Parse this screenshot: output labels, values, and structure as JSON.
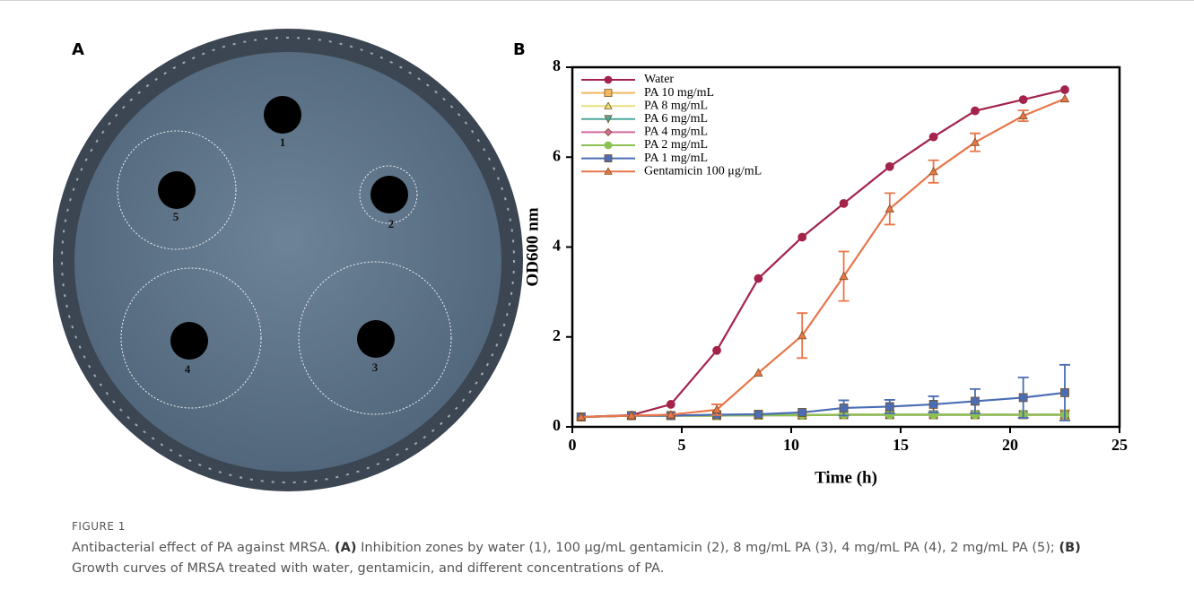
{
  "panel_a": {
    "label": "A",
    "well_labels": [
      "1",
      "2",
      "3",
      "4",
      "5"
    ]
  },
  "chart_data": {
    "type": "line",
    "panel_label": "B",
    "x_label": "Time (h)",
    "y_label": "OD600 nm",
    "xlim": [
      0,
      25
    ],
    "ylim": [
      0,
      8
    ],
    "xticks": [
      0,
      5,
      10,
      15,
      20,
      25
    ],
    "yticks": [
      0,
      2,
      4,
      6,
      8
    ],
    "grid": false,
    "legend": "upper left",
    "x": [
      0.4,
      2.7,
      4.5,
      6.6,
      8.5,
      10.5,
      12.4,
      14.5,
      16.5,
      18.4,
      20.6,
      22.5
    ],
    "series": [
      {
        "name": "Water",
        "color": "#a3234b",
        "marker": "circle",
        "values": [
          0.22,
          0.26,
          0.5,
          1.7,
          3.3,
          4.22,
          4.97,
          5.79,
          6.45,
          7.03,
          7.28,
          7.5
        ],
        "errors": [
          null,
          null,
          null,
          null,
          null,
          null,
          null,
          null,
          null,
          null,
          null,
          null
        ]
      },
      {
        "name": "PA 10 mg/mL",
        "color": "#f0b860",
        "marker": "square",
        "values": [
          0.22,
          0.25,
          0.25,
          0.25,
          0.26,
          0.26,
          0.27,
          0.27,
          0.27,
          0.27,
          0.27,
          0.27
        ],
        "errors": [
          null,
          null,
          null,
          null,
          null,
          null,
          null,
          null,
          null,
          null,
          null,
          0.1
        ]
      },
      {
        "name": "PA 8 mg/mL",
        "color": "#e6e07a",
        "marker": "triangle",
        "values": [
          0.22,
          0.25,
          0.25,
          0.25,
          0.26,
          0.26,
          0.27,
          0.27,
          0.27,
          0.27,
          0.27,
          0.27
        ],
        "errors": [
          null,
          null,
          null,
          null,
          null,
          null,
          null,
          null,
          null,
          null,
          null,
          null
        ]
      },
      {
        "name": "PA 6 mg/mL",
        "color": "#4fa89c",
        "marker": "triangle-down",
        "values": [
          0.22,
          0.25,
          0.25,
          0.25,
          0.26,
          0.26,
          0.27,
          0.27,
          0.27,
          0.27,
          0.27,
          0.27
        ],
        "errors": [
          null,
          null,
          null,
          null,
          null,
          null,
          null,
          null,
          null,
          null,
          null,
          null
        ]
      },
      {
        "name": "PA 4 mg/mL",
        "color": "#d26a9c",
        "marker": "diamond",
        "values": [
          0.22,
          0.25,
          0.25,
          0.25,
          0.26,
          0.26,
          0.27,
          0.27,
          0.27,
          0.27,
          0.27,
          0.27
        ],
        "errors": [
          null,
          null,
          null,
          null,
          null,
          null,
          null,
          null,
          null,
          null,
          null,
          null
        ]
      },
      {
        "name": "PA 2 mg/mL",
        "color": "#8cc152",
        "marker": "circle",
        "values": [
          0.22,
          0.25,
          0.25,
          0.25,
          0.26,
          0.26,
          0.27,
          0.27,
          0.27,
          0.27,
          0.27,
          0.27
        ],
        "errors": [
          null,
          null,
          null,
          null,
          null,
          null,
          null,
          null,
          null,
          null,
          null,
          null
        ]
      },
      {
        "name": "PA 1 mg/mL",
        "color": "#4a6db3",
        "marker": "square",
        "values": [
          0.22,
          0.25,
          0.25,
          0.27,
          0.28,
          0.32,
          0.42,
          0.45,
          0.5,
          0.57,
          0.65,
          0.76
        ],
        "errors": [
          null,
          null,
          null,
          null,
          null,
          null,
          0.17,
          0.15,
          0.18,
          0.27,
          0.45,
          0.62
        ]
      },
      {
        "name": "Gentamicin 100 μg/mL",
        "color": "#e8764a",
        "marker": "triangle",
        "values": [
          0.22,
          0.25,
          0.27,
          0.38,
          1.2,
          2.03,
          3.35,
          4.85,
          5.68,
          6.33,
          6.92,
          7.3
        ],
        "errors": [
          null,
          null,
          null,
          0.12,
          null,
          0.5,
          0.55,
          0.35,
          0.25,
          0.2,
          0.12,
          null
        ]
      }
    ]
  },
  "caption": {
    "label": "FIGURE 1",
    "parts": [
      "Antibacterial effect of PA against MRSA.",
      "(A)",
      "Inhibition zones by water (1), 100 μg/mL gentamicin (2), 8 mg/mL PA (3), 4 mg/mL PA (4), 2 mg/mL PA (5);",
      "(B)",
      "Growth curves of MRSA treated with water, gentamicin, and different concentrations of PA."
    ]
  }
}
